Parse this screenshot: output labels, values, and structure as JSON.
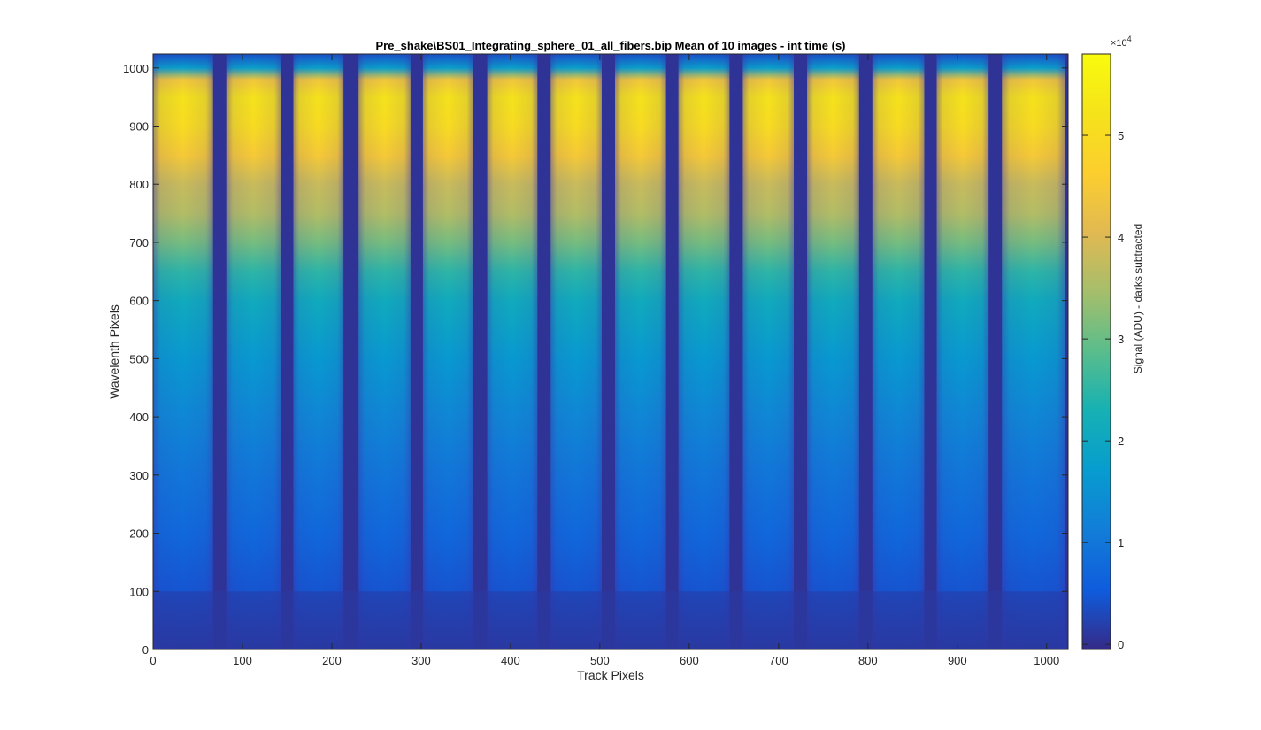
{
  "chart_data": {
    "type": "heatmap",
    "title": "Pre_shake\\BS01_Integrating_sphere_01_all_fibers.bip  Mean of 10 images - int time (s)",
    "xlabel": "Track Pixels",
    "ylabel": "Wavelenth Pixels",
    "xlim": [
      0,
      1024
    ],
    "ylim": [
      0,
      1024
    ],
    "x_ticks": [
      0,
      100,
      200,
      300,
      400,
      500,
      600,
      700,
      800,
      900,
      1000
    ],
    "y_ticks": [
      0,
      100,
      200,
      300,
      400,
      500,
      600,
      700,
      800,
      900,
      1000
    ],
    "colormap": "parula",
    "colorbar": {
      "label": "Signal (ADU) - darks subtracted",
      "exponent_label": "×10",
      "exponent": "4",
      "ticks": [
        0,
        1,
        2,
        3,
        4,
        5
      ],
      "range": [
        -0.05,
        5.8
      ],
      "placement": "right"
    },
    "fiber_track_x_ranges": [
      [
        0,
        67
      ],
      [
        82,
        143
      ],
      [
        157,
        213
      ],
      [
        230,
        288
      ],
      [
        302,
        358
      ],
      [
        374,
        430
      ],
      [
        445,
        502
      ],
      [
        517,
        574
      ],
      [
        588,
        645
      ],
      [
        660,
        717
      ],
      [
        732,
        790
      ],
      [
        805,
        863
      ],
      [
        877,
        935
      ],
      [
        950,
        1020
      ]
    ],
    "gap_x_centers": [
      74,
      150,
      222,
      295,
      366,
      437,
      510,
      581,
      652,
      725,
      797,
      870,
      943,
      1021
    ],
    "signal_profile_along_wavelength": {
      "wavelength": [
        0,
        100,
        200,
        300,
        400,
        500,
        600,
        650,
        700,
        750,
        800,
        850,
        900,
        950,
        980,
        1000,
        1024
      ],
      "signal_x1e4": [
        0.1,
        0.45,
        0.75,
        1.0,
        1.3,
        1.65,
        2.1,
        2.5,
        3.1,
        3.6,
        3.8,
        4.5,
        5.0,
        5.2,
        4.4,
        1.8,
        0.4
      ]
    },
    "grid": false
  }
}
